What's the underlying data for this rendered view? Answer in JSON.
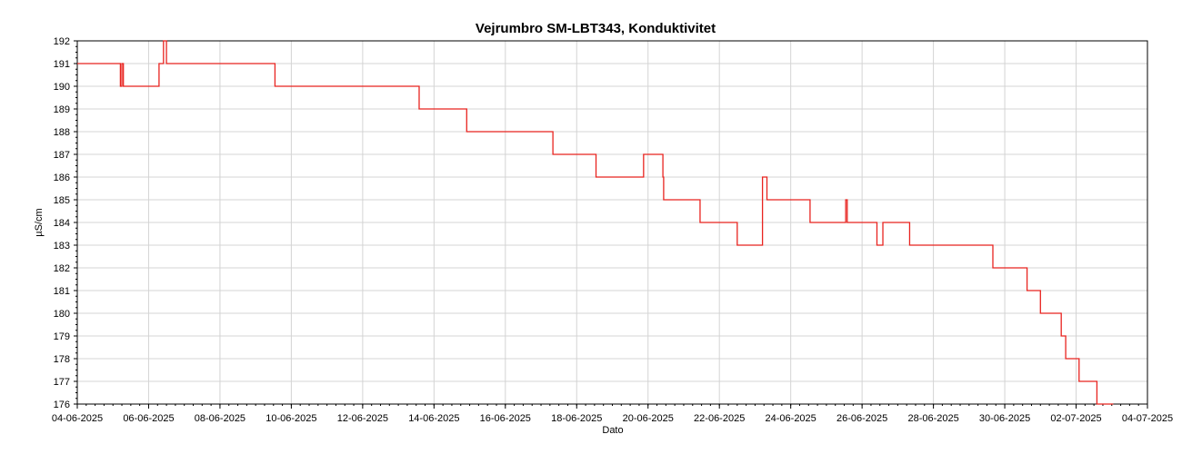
{
  "chart_data": {
    "type": "line",
    "title": "Vejrumbro SM-LBT343, Konduktivitet",
    "xlabel": "Dato",
    "ylabel": "µS/cm",
    "ylim": [
      176,
      192
    ],
    "y_ticks": [
      176,
      177,
      178,
      179,
      180,
      181,
      182,
      183,
      184,
      185,
      186,
      187,
      188,
      189,
      190,
      191,
      192
    ],
    "xlim": [
      "2025-06-04",
      "2025-07-04"
    ],
    "x_tick_labels": [
      "04-06-2025",
      "06-06-2025",
      "08-06-2025",
      "10-06-2025",
      "12-06-2025",
      "14-06-2025",
      "16-06-2025",
      "18-06-2025",
      "20-06-2025",
      "22-06-2025",
      "24-06-2025",
      "26-06-2025",
      "28-06-2025",
      "30-06-2025",
      "02-07-2025",
      "04-07-2025"
    ],
    "grid": true,
    "series": [
      {
        "color": "#e8231f",
        "x": [
          "2025-06-04 00:00",
          "2025-06-05 05:00",
          "2025-06-05 05:00",
          "2025-06-05 06:00",
          "2025-06-05 06:00",
          "2025-06-05 07:00",
          "2025-06-05 07:00",
          "2025-06-06 07:00",
          "2025-06-06 07:00",
          "2025-06-06 10:00",
          "2025-06-06 10:00",
          "2025-06-06 12:00",
          "2025-06-06 12:00",
          "2025-06-09 13:00",
          "2025-06-09 13:00",
          "2025-06-13 14:00",
          "2025-06-13 14:00",
          "2025-06-14 22:00",
          "2025-06-14 22:00",
          "2025-06-17 08:00",
          "2025-06-17 08:00",
          "2025-06-18 13:00",
          "2025-06-18 13:00",
          "2025-06-19 21:00",
          "2025-06-19 21:00",
          "2025-06-20 10:00",
          "2025-06-20 10:00",
          "2025-06-20 10:30",
          "2025-06-20 10:30",
          "2025-06-21 11:00",
          "2025-06-21 11:00",
          "2025-06-22 12:00",
          "2025-06-22 12:00",
          "2025-06-23 05:00",
          "2025-06-23 05:00",
          "2025-06-23 08:00",
          "2025-06-23 08:00",
          "2025-06-24 13:00",
          "2025-06-24 13:00",
          "2025-06-25 13:00",
          "2025-06-25 13:00",
          "2025-06-25 14:00",
          "2025-06-25 14:00",
          "2025-06-26 10:00",
          "2025-06-26 10:00",
          "2025-06-26 14:00",
          "2025-06-26 14:00",
          "2025-06-27 08:00",
          "2025-06-27 08:00",
          "2025-06-29 16:00",
          "2025-06-29 16:00",
          "2025-06-30 15:00",
          "2025-06-30 15:00",
          "2025-07-01 00:00",
          "2025-07-01 00:00",
          "2025-07-01 14:00",
          "2025-07-01 14:00",
          "2025-07-01 17:00",
          "2025-07-01 17:00",
          "2025-07-02 02:00",
          "2025-07-02 02:00",
          "2025-07-02 14:00",
          "2025-07-02 14:00",
          "2025-07-03 01:00"
        ],
        "y": [
          191,
          191,
          190,
          190,
          191,
          191,
          190,
          190,
          191,
          191,
          192,
          192,
          191,
          191,
          190,
          190,
          189,
          189,
          188,
          188,
          187,
          187,
          186,
          186,
          187,
          187,
          186,
          186,
          185,
          185,
          184,
          184,
          183,
          183,
          186,
          186,
          185,
          185,
          184,
          184,
          185,
          185,
          184,
          184,
          183,
          183,
          184,
          184,
          183,
          183,
          182,
          182,
          181,
          181,
          180,
          180,
          179,
          179,
          178,
          178,
          177,
          177,
          176,
          176
        ]
      }
    ]
  }
}
